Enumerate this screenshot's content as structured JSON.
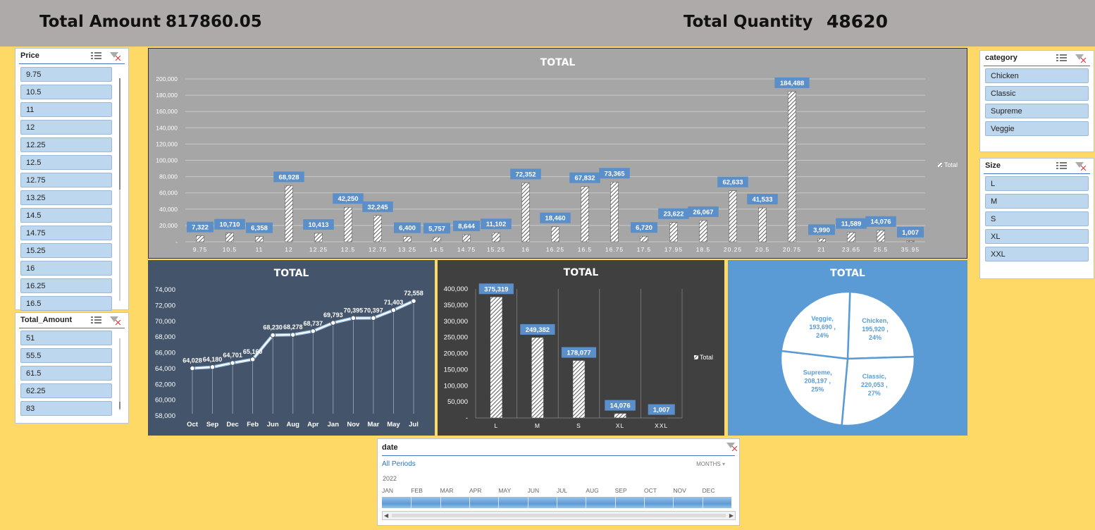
{
  "header": {
    "total_amount_label": "Total Amount",
    "total_amount_value": "817860.05",
    "total_quantity_label": "Total Quantity",
    "total_quantity_value": "48620"
  },
  "colors": {
    "background": "#ffd966",
    "header": "#aeaaaa",
    "price_chart_bg": "#a6a6a6",
    "month_chart_bg": "#44546a",
    "size_chart_bg": "#404040",
    "pie_bg": "#5b9bd5",
    "label_box": "#5b8fc9",
    "slicer_item": "#bdd7ee"
  },
  "slicers": {
    "price": {
      "title": "Price",
      "items": [
        "9.75",
        "10.5",
        "11",
        "12",
        "12.25",
        "12.5",
        "12.75",
        "13.25",
        "14.5",
        "14.75",
        "15.25",
        "16",
        "16.25",
        "16.5"
      ]
    },
    "total_amount": {
      "title": "Total_Amount",
      "items": [
        "51",
        "55.5",
        "61.5",
        "62.25",
        "83"
      ]
    },
    "category": {
      "title": "category",
      "items": [
        "Chicken",
        "Classic",
        "Supreme",
        "Veggie"
      ]
    },
    "size": {
      "title": "Size",
      "items": [
        "L",
        "M",
        "S",
        "XL",
        "XXL"
      ]
    },
    "icons": [
      "multi-select-icon",
      "clear-filter-icon"
    ]
  },
  "timeline": {
    "title": "date",
    "period_label": "All Periods",
    "level_label": "MONTHS",
    "year": "2022",
    "months": [
      "JAN",
      "FEB",
      "MAR",
      "APR",
      "MAY",
      "JUN",
      "JUL",
      "AUG",
      "SEP",
      "OCT",
      "NOV",
      "DEC"
    ]
  },
  "chart_data": [
    {
      "type": "bar",
      "title": "TOTAL",
      "legend": "Total",
      "legend_position": "right",
      "categories": [
        "9.75",
        "10.5",
        "11",
        "12",
        "12.25",
        "12.5",
        "12.75",
        "13.25",
        "14.5",
        "14.75",
        "15.25",
        "16",
        "16.25",
        "16.5",
        "16.75",
        "17.5",
        "17.95",
        "18.5",
        "20.25",
        "20.5",
        "20.75",
        "21",
        "23.65",
        "25.5",
        "35.95"
      ],
      "values": [
        7322,
        10710,
        6358,
        68928,
        10413,
        42250,
        32245,
        6400,
        5757,
        8644,
        11102,
        72352,
        18460,
        67832,
        73365,
        6720,
        23622,
        26067,
        62633,
        41533,
        184488,
        3990,
        11589,
        14076,
        1007
      ],
      "value_labels": [
        "7,322",
        "10,710",
        "6,358",
        "68,928",
        "10,413",
        "42,250",
        "32,245",
        "6,400",
        "5,757",
        "8,644",
        "11,102",
        "72,352",
        "18,460",
        "67,832",
        "73,365",
        "6,720",
        "23,622",
        "26,067",
        "62,633",
        "41,533",
        "184,488",
        "3,990",
        "11,589",
        "14,076",
        "1,007"
      ],
      "ylim": [
        0,
        200000
      ],
      "yticks": [
        "-",
        "20,000",
        "40,000",
        "60,000",
        "80,000",
        "100,000",
        "120,000",
        "140,000",
        "160,000",
        "180,000",
        "200,000"
      ],
      "grid": true
    },
    {
      "type": "line",
      "title": "TOTAL",
      "categories": [
        "Oct",
        "Sep",
        "Dec",
        "Feb",
        "Jun",
        "Aug",
        "Apr",
        "Jan",
        "Nov",
        "Mar",
        "May",
        "Jul"
      ],
      "values": [
        64028,
        64180,
        64701,
        65160,
        68230,
        68278,
        68737,
        69793,
        70395,
        70397,
        71403,
        72558
      ],
      "value_labels": [
        "64,028",
        "64,180",
        "64,701",
        "65,160",
        "68,230",
        "68,278",
        "68,737",
        "69,793",
        "70,395",
        "70,397",
        "71,403",
        "72,558"
      ],
      "ylim": [
        58000,
        74000
      ],
      "yticks": [
        "58,000",
        "60,000",
        "62,000",
        "64,000",
        "66,000",
        "68,000",
        "70,000",
        "72,000",
        "74,000"
      ]
    },
    {
      "type": "bar",
      "title": "TOTAL",
      "legend": "Total",
      "legend_position": "right",
      "categories": [
        "L",
        "M",
        "S",
        "XL",
        "XXL"
      ],
      "values": [
        375319,
        249382,
        178077,
        14076,
        1007
      ],
      "value_labels": [
        "375,319",
        "249,382",
        "178,077",
        "14,076",
        "1,007"
      ],
      "ylim": [
        0,
        400000
      ],
      "yticks": [
        "-",
        "50,000",
        "100,000",
        "150,000",
        "200,000",
        "250,000",
        "300,000",
        "350,000",
        "400,000"
      ]
    },
    {
      "type": "pie",
      "title": "TOTAL",
      "slices": [
        {
          "name": "Chicken",
          "value": 195920,
          "value_label": "195,920 ,",
          "percent": "24%"
        },
        {
          "name": "Classic",
          "value": 220053,
          "value_label": "220,053 ,",
          "percent": "27%"
        },
        {
          "name": "Supreme",
          "value": 208197,
          "value_label": "208,197 ,",
          "percent": "25%"
        },
        {
          "name": "Veggie",
          "value": 193690,
          "value_label": "193,690 ,",
          "percent": "24%"
        }
      ]
    }
  ]
}
